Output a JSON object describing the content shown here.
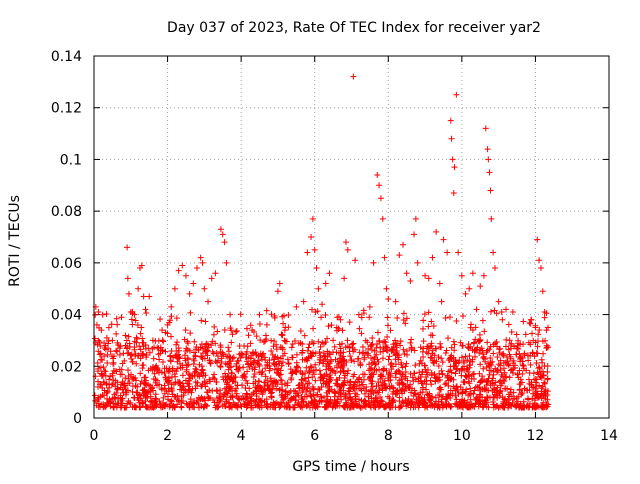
{
  "chart_data": {
    "type": "scatter",
    "title": "Day 037 of 2023, Rate Of TEC Index for receiver yar2",
    "xlabel": "GPS time / hours",
    "ylabel": "ROTI / TECUs",
    "xlim": [
      0,
      14
    ],
    "ylim": [
      0,
      0.14
    ],
    "x_ticks": [
      "0",
      "2",
      "4",
      "6",
      "8",
      "10",
      "12",
      "14"
    ],
    "y_ticks": [
      "0",
      "0.02",
      "0.04",
      "0.06",
      "0.08",
      "0.1",
      "0.12",
      "0.14"
    ],
    "grid": true,
    "marker": "+",
    "color": "#ff0000",
    "series": [
      {
        "points": [
          [
            0.05,
            0.043
          ],
          [
            0.08,
            0.036
          ],
          [
            0.12,
            0.041
          ],
          [
            0.2,
            0.034
          ],
          [
            0.35,
            0.031
          ],
          [
            0.5,
            0.03
          ],
          [
            0.6,
            0.026
          ],
          [
            0.8,
            0.025
          ],
          [
            0.9,
            0.066
          ],
          [
            0.92,
            0.054
          ],
          [
            0.95,
            0.048
          ],
          [
            1.0,
            0.041
          ],
          [
            1.1,
            0.04
          ],
          [
            1.2,
            0.05
          ],
          [
            1.25,
            0.058
          ],
          [
            1.3,
            0.059
          ],
          [
            1.35,
            0.047
          ],
          [
            1.4,
            0.042
          ],
          [
            1.5,
            0.047
          ],
          [
            1.6,
            0.03
          ],
          [
            1.8,
            0.025
          ],
          [
            1.85,
            0.034
          ],
          [
            2.0,
            0.036
          ],
          [
            2.1,
            0.043
          ],
          [
            2.2,
            0.05
          ],
          [
            2.3,
            0.057
          ],
          [
            2.4,
            0.059
          ],
          [
            2.5,
            0.055
          ],
          [
            2.6,
            0.048
          ],
          [
            2.7,
            0.052
          ],
          [
            2.8,
            0.058
          ],
          [
            2.9,
            0.062
          ],
          [
            2.95,
            0.06
          ],
          [
            3.0,
            0.05
          ],
          [
            3.1,
            0.045
          ],
          [
            3.2,
            0.054
          ],
          [
            3.3,
            0.056
          ],
          [
            3.45,
            0.073
          ],
          [
            3.5,
            0.071
          ],
          [
            3.55,
            0.068
          ],
          [
            3.6,
            0.06
          ],
          [
            3.7,
            0.04
          ],
          [
            3.9,
            0.022
          ],
          [
            4.0,
            0.025
          ],
          [
            4.2,
            0.032
          ],
          [
            4.3,
            0.034
          ],
          [
            4.5,
            0.04
          ],
          [
            4.7,
            0.036
          ],
          [
            5.0,
            0.049
          ],
          [
            5.05,
            0.052
          ],
          [
            5.2,
            0.035
          ],
          [
            5.5,
            0.043
          ],
          [
            5.7,
            0.045
          ],
          [
            5.8,
            0.064
          ],
          [
            5.9,
            0.07
          ],
          [
            5.95,
            0.077
          ],
          [
            6.0,
            0.065
          ],
          [
            6.05,
            0.058
          ],
          [
            6.1,
            0.05
          ],
          [
            6.2,
            0.044
          ],
          [
            6.3,
            0.052
          ],
          [
            6.4,
            0.056
          ],
          [
            6.5,
            0.03
          ],
          [
            6.6,
            0.035
          ],
          [
            6.7,
            0.038
          ],
          [
            6.8,
            0.054
          ],
          [
            6.85,
            0.068
          ],
          [
            6.9,
            0.065
          ],
          [
            7.05,
            0.132
          ],
          [
            7.1,
            0.061
          ],
          [
            7.2,
            0.04
          ],
          [
            7.5,
            0.043
          ],
          [
            7.6,
            0.06
          ],
          [
            7.7,
            0.094
          ],
          [
            7.75,
            0.09
          ],
          [
            7.8,
            0.085
          ],
          [
            7.85,
            0.077
          ],
          [
            7.9,
            0.062
          ],
          [
            7.95,
            0.05
          ],
          [
            8.0,
            0.046
          ],
          [
            8.2,
            0.045
          ],
          [
            8.3,
            0.063
          ],
          [
            8.4,
            0.067
          ],
          [
            8.5,
            0.056
          ],
          [
            8.6,
            0.053
          ],
          [
            8.7,
            0.071
          ],
          [
            8.75,
            0.077
          ],
          [
            8.8,
            0.06
          ],
          [
            9.0,
            0.055
          ],
          [
            9.1,
            0.054
          ],
          [
            9.2,
            0.062
          ],
          [
            9.3,
            0.072
          ],
          [
            9.4,
            0.052
          ],
          [
            9.45,
            0.045
          ],
          [
            9.5,
            0.069
          ],
          [
            9.6,
            0.064
          ],
          [
            9.7,
            0.115
          ],
          [
            9.72,
            0.108
          ],
          [
            9.75,
            0.1
          ],
          [
            9.78,
            0.087
          ],
          [
            9.8,
            0.097
          ],
          [
            9.85,
            0.125
          ],
          [
            9.9,
            0.064
          ],
          [
            10.0,
            0.055
          ],
          [
            10.1,
            0.048
          ],
          [
            10.2,
            0.05
          ],
          [
            10.3,
            0.056
          ],
          [
            10.4,
            0.042
          ],
          [
            10.5,
            0.051
          ],
          [
            10.6,
            0.055
          ],
          [
            10.65,
            0.112
          ],
          [
            10.7,
            0.104
          ],
          [
            10.72,
            0.1
          ],
          [
            10.75,
            0.095
          ],
          [
            10.78,
            0.088
          ],
          [
            10.8,
            0.077
          ],
          [
            10.85,
            0.064
          ],
          [
            10.9,
            0.058
          ],
          [
            11.0,
            0.045
          ],
          [
            11.1,
            0.038
          ],
          [
            11.2,
            0.042
          ],
          [
            11.3,
            0.03
          ],
          [
            11.5,
            0.027
          ],
          [
            11.7,
            0.025
          ],
          [
            12.0,
            0.035
          ],
          [
            12.05,
            0.069
          ],
          [
            12.1,
            0.061
          ],
          [
            12.15,
            0.058
          ],
          [
            12.2,
            0.049
          ],
          [
            12.25,
            0.041
          ],
          [
            12.3,
            0.034
          ]
        ]
      }
    ]
  }
}
